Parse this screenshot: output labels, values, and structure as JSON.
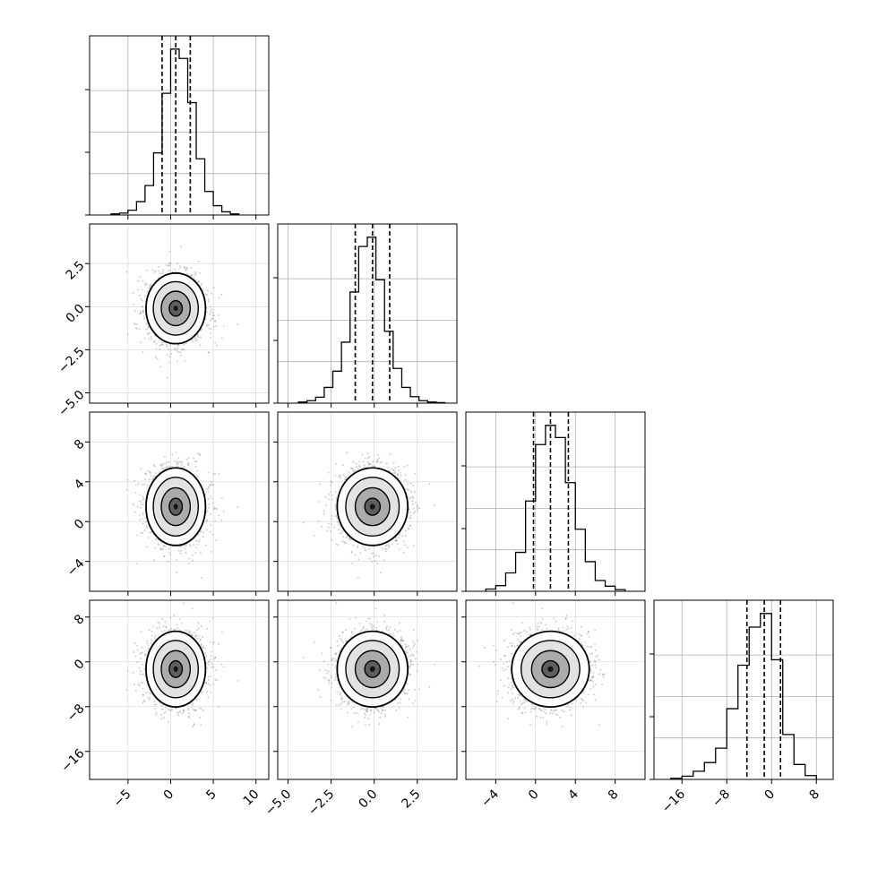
{
  "chart_data": {
    "type": "corner",
    "title": "",
    "grid": true,
    "ranges": [
      [
        -9.5,
        11.5
      ],
      [
        -5.6,
        4.8
      ],
      [
        -7,
        11
      ],
      [
        -21,
        11
      ]
    ],
    "ticks": [
      [
        -5,
        0,
        5,
        10
      ],
      [
        -5.0,
        -2.5,
        0.0,
        2.5
      ],
      [
        -4,
        0,
        4,
        8
      ],
      [
        -16,
        -8,
        0,
        8
      ]
    ],
    "tick_labels": [
      [
        "−5",
        "0",
        "5",
        "10"
      ],
      [
        "−5.0",
        "−2.5",
        "0.0",
        "2.5"
      ],
      [
        "−4",
        "0",
        "4",
        "8"
      ],
      [
        "−16",
        "−8",
        "0",
        "8"
      ]
    ],
    "means": [
      0.6,
      -0.1,
      1.5,
      -1.3
    ],
    "sigmas": [
      1.7,
      1.0,
      1.9,
      3.3
    ],
    "quantiles_16_50_84": [
      [
        -1.0,
        0.6,
        2.3
      ],
      [
        -1.1,
        -0.1,
        0.9
      ],
      [
        -0.2,
        1.5,
        3.3
      ],
      [
        -4.4,
        -1.3,
        1.6
      ]
    ],
    "histograms": [
      {
        "bin_edges": [
          -7,
          -6,
          -5,
          -4,
          -3,
          -2,
          -1,
          0,
          1,
          2,
          3,
          4,
          5,
          6,
          7,
          8
        ],
        "counts": [
          4,
          7,
          18,
          50,
          110,
          232,
          455,
          620,
          585,
          420,
          210,
          88,
          35,
          12,
          4
        ]
      },
      {
        "bin_edges": [
          -4.4,
          -3.9,
          -3.4,
          -2.9,
          -2.4,
          -1.9,
          -1.4,
          -0.9,
          -0.4,
          0.1,
          0.6,
          1.1,
          1.6,
          2.1,
          2.6,
          3.1,
          3.6,
          4.1
        ],
        "counts": [
          4,
          9,
          22,
          58,
          118,
          225,
          410,
          578,
          612,
          455,
          265,
          128,
          58,
          24,
          9,
          4,
          2
        ]
      },
      {
        "bin_edges": [
          -5,
          -4,
          -3,
          -2,
          -1,
          0,
          1,
          2,
          3,
          4,
          5,
          6,
          7,
          8,
          9
        ],
        "counts": [
          8,
          20,
          65,
          138,
          320,
          520,
          588,
          545,
          385,
          220,
          105,
          38,
          18,
          6
        ]
      },
      {
        "bin_edges": [
          -18,
          -16,
          -14,
          -12,
          -10,
          -8,
          -6,
          -4,
          -2,
          0,
          2,
          4,
          6,
          8
        ],
        "counts": [
          4,
          12,
          30,
          62,
          115,
          260,
          420,
          560,
          610,
          440,
          165,
          55,
          14
        ]
      }
    ]
  }
}
